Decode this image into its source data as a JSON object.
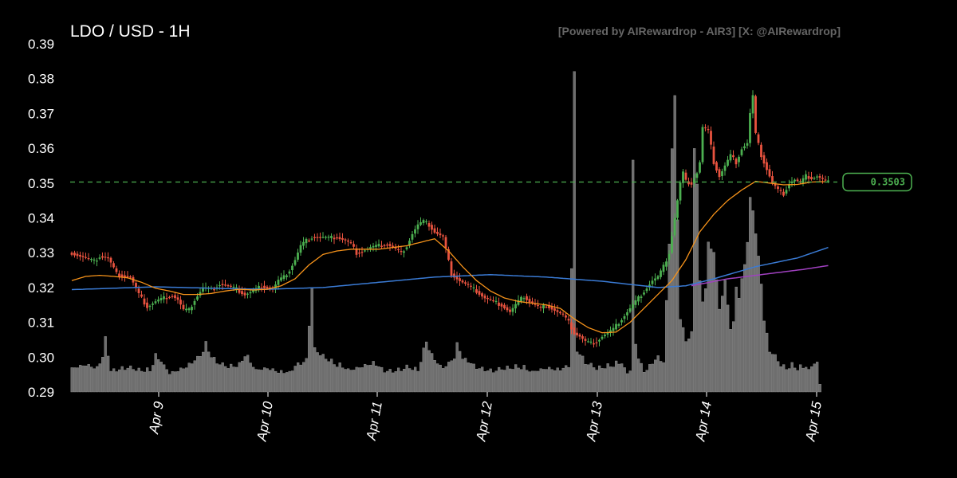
{
  "header": {
    "title": "LDO / USD - 1H",
    "watermark": "[Powered by AIRewardrop - AIR3] [X: @AIRewardrop]"
  },
  "colors": {
    "background": "#000000",
    "up": "#4caf50",
    "down": "#e8533f",
    "volume": "#6e6e6e",
    "ma_short": "#f7931a",
    "ma_mid": "#3a7bd5",
    "ma_long": "#a040c0",
    "price_line": "#4caf50"
  },
  "chart_data": {
    "type": "candlestick",
    "interval": "1H",
    "ylim": [
      0.29,
      0.39
    ],
    "yticks": [
      "0.39",
      "0.38",
      "0.37",
      "0.36",
      "0.35",
      "0.34",
      "0.33",
      "0.32",
      "0.31",
      "0.30",
      "0.29"
    ],
    "xticks": [
      "Apr 9",
      "Apr 10",
      "Apr 11",
      "Apr 12",
      "Apr 13",
      "Apr 14",
      "Apr 15"
    ],
    "current_price": "0.3503",
    "price_keypoints": [
      [
        0,
        0.33
      ],
      [
        8,
        0.3275
      ],
      [
        10,
        0.329
      ],
      [
        13,
        0.3285
      ],
      [
        16,
        0.324
      ],
      [
        18,
        0.3235
      ],
      [
        21,
        0.323
      ],
      [
        24,
        0.318
      ],
      [
        27,
        0.3145
      ],
      [
        30,
        0.316
      ],
      [
        33,
        0.317
      ],
      [
        36,
        0.3178
      ],
      [
        38,
        0.3165
      ],
      [
        40,
        0.3135
      ],
      [
        42,
        0.3135
      ],
      [
        44,
        0.3165
      ],
      [
        47,
        0.32
      ],
      [
        50,
        0.3195
      ],
      [
        53,
        0.321
      ],
      [
        56,
        0.3205
      ],
      [
        59,
        0.3195
      ],
      [
        62,
        0.318
      ],
      [
        65,
        0.319
      ],
      [
        68,
        0.3205
      ],
      [
        70,
        0.32
      ],
      [
        72,
        0.3195
      ],
      [
        74,
        0.322
      ],
      [
        76,
        0.323
      ],
      [
        78,
        0.325
      ],
      [
        80,
        0.328
      ],
      [
        82,
        0.332
      ],
      [
        84,
        0.3335
      ],
      [
        86,
        0.3345
      ],
      [
        89,
        0.3345
      ],
      [
        92,
        0.3342
      ],
      [
        95,
        0.3345
      ],
      [
        98,
        0.3335
      ],
      [
        100,
        0.3325
      ],
      [
        102,
        0.33
      ],
      [
        104,
        0.3305
      ],
      [
        107,
        0.3315
      ],
      [
        110,
        0.332
      ],
      [
        113,
        0.3325
      ],
      [
        116,
        0.331
      ],
      [
        118,
        0.33
      ],
      [
        120,
        0.332
      ],
      [
        122,
        0.3355
      ],
      [
        124,
        0.338
      ],
      [
        126,
        0.339
      ],
      [
        128,
        0.338
      ],
      [
        130,
        0.336
      ],
      [
        133,
        0.3345
      ],
      [
        136,
        0.324
      ],
      [
        139,
        0.322
      ],
      [
        142,
        0.3205
      ],
      [
        145,
        0.319
      ],
      [
        148,
        0.317
      ],
      [
        151,
        0.316
      ],
      [
        154,
        0.315
      ],
      [
        157,
        0.313
      ],
      [
        160,
        0.316
      ],
      [
        162,
        0.3175
      ],
      [
        164,
        0.316
      ],
      [
        166,
        0.315
      ],
      [
        168,
        0.314
      ],
      [
        170,
        0.315
      ],
      [
        172,
        0.314
      ],
      [
        174,
        0.313
      ],
      [
        176,
        0.312
      ],
      [
        178,
        0.31
      ],
      [
        180,
        0.307
      ],
      [
        182,
        0.306
      ],
      [
        184,
        0.3045
      ],
      [
        186,
        0.304
      ],
      [
        188,
        0.3045
      ],
      [
        190,
        0.306
      ],
      [
        192,
        0.307
      ],
      [
        194,
        0.308
      ],
      [
        196,
        0.31
      ],
      [
        198,
        0.312
      ],
      [
        200,
        0.314
      ],
      [
        202,
        0.316
      ],
      [
        204,
        0.318
      ],
      [
        206,
        0.32
      ],
      [
        208,
        0.322
      ],
      [
        210,
        0.323
      ],
      [
        212,
        0.326
      ],
      [
        214,
        0.33
      ],
      [
        216,
        0.34
      ],
      [
        218,
        0.35
      ],
      [
        219,
        0.353
      ],
      [
        220,
        0.3505
      ],
      [
        222,
        0.35
      ],
      [
        224,
        0.353
      ],
      [
        225,
        0.356
      ],
      [
        226,
        0.366
      ],
      [
        228,
        0.365
      ],
      [
        230,
        0.356
      ],
      [
        232,
        0.352
      ],
      [
        234,
        0.355
      ],
      [
        236,
        0.358
      ],
      [
        238,
        0.356
      ],
      [
        240,
        0.36
      ],
      [
        242,
        0.3615
      ],
      [
        243,
        0.37
      ],
      [
        244,
        0.375
      ],
      [
        245,
        0.364
      ],
      [
        247,
        0.358
      ],
      [
        249,
        0.354
      ],
      [
        251,
        0.35
      ],
      [
        253,
        0.348
      ],
      [
        255,
        0.347
      ],
      [
        257,
        0.35
      ],
      [
        259,
        0.351
      ],
      [
        261,
        0.35
      ],
      [
        263,
        0.352
      ],
      [
        265,
        0.3515
      ],
      [
        267,
        0.352
      ],
      [
        269,
        0.351
      ],
      [
        271,
        0.3503
      ]
    ],
    "volume_keypoints": [
      [
        0,
        0.297
      ],
      [
        5,
        0.298
      ],
      [
        9,
        0.297
      ],
      [
        11,
        0.3
      ],
      [
        12,
        0.3055
      ],
      [
        14,
        0.296
      ],
      [
        20,
        0.297
      ],
      [
        24,
        0.296
      ],
      [
        28,
        0.296
      ],
      [
        30,
        0.3
      ],
      [
        32,
        0.299
      ],
      [
        35,
        0.2955
      ],
      [
        40,
        0.297
      ],
      [
        44,
        0.299
      ],
      [
        47,
        0.3015
      ],
      [
        48,
        0.304
      ],
      [
        50,
        0.3
      ],
      [
        53,
        0.298
      ],
      [
        56,
        0.297
      ],
      [
        60,
        0.2975
      ],
      [
        62,
        0.3005
      ],
      [
        64,
        0.2985
      ],
      [
        66,
        0.2965
      ],
      [
        70,
        0.297
      ],
      [
        74,
        0.296
      ],
      [
        78,
        0.2955
      ],
      [
        80,
        0.2975
      ],
      [
        84,
        0.299
      ],
      [
        86,
        0.32
      ],
      [
        87,
        0.302
      ],
      [
        90,
        0.3
      ],
      [
        95,
        0.2975
      ],
      [
        100,
        0.2965
      ],
      [
        104,
        0.2975
      ],
      [
        108,
        0.2985
      ],
      [
        112,
        0.296
      ],
      [
        116,
        0.296
      ],
      [
        120,
        0.297
      ],
      [
        124,
        0.296
      ],
      [
        127,
        0.3045
      ],
      [
        129,
        0.3
      ],
      [
        133,
        0.297
      ],
      [
        137,
        0.3
      ],
      [
        138,
        0.304
      ],
      [
        140,
        0.3
      ],
      [
        145,
        0.297
      ],
      [
        150,
        0.296
      ],
      [
        155,
        0.2965
      ],
      [
        160,
        0.297
      ],
      [
        165,
        0.296
      ],
      [
        170,
        0.297
      ],
      [
        175,
        0.2965
      ],
      [
        178,
        0.2975
      ],
      [
        179,
        0.3255
      ],
      [
        180,
        0.3815
      ],
      [
        181,
        0.302
      ],
      [
        184,
        0.2985
      ],
      [
        188,
        0.2965
      ],
      [
        194,
        0.2975
      ],
      [
        197,
        0.2985
      ],
      [
        199,
        0.2955
      ],
      [
        200,
        0.2965
      ],
      [
        201,
        0.3565
      ],
      [
        202,
        0.304
      ],
      [
        203,
        0.3
      ],
      [
        205,
        0.296
      ],
      [
        210,
        0.3
      ],
      [
        212,
        0.2985
      ],
      [
        214,
        0.333
      ],
      [
        215,
        0.36
      ],
      [
        216,
        0.3745
      ],
      [
        217,
        0.34
      ],
      [
        218,
        0.311
      ],
      [
        220,
        0.3045
      ],
      [
        222,
        0.3065
      ],
      [
        223,
        0.36
      ],
      [
        224,
        0.35
      ],
      [
        225,
        0.321
      ],
      [
        226,
        0.316
      ],
      [
        227,
        0.32
      ],
      [
        228,
        0.332
      ],
      [
        230,
        0.3305
      ],
      [
        232,
        0.314
      ],
      [
        234,
        0.322
      ],
      [
        236,
        0.3085
      ],
      [
        237,
        0.31
      ],
      [
        238,
        0.3205
      ],
      [
        239,
        0.3175
      ],
      [
        241,
        0.327
      ],
      [
        242,
        0.333
      ],
      [
        243,
        0.3455
      ],
      [
        244,
        0.3425
      ],
      [
        245,
        0.3355
      ],
      [
        246,
        0.3285
      ],
      [
        247,
        0.3215
      ],
      [
        248,
        0.3105
      ],
      [
        250,
        0.302
      ],
      [
        252,
        0.3
      ],
      [
        254,
        0.2975
      ],
      [
        256,
        0.2965
      ],
      [
        258,
        0.2975
      ],
      [
        260,
        0.2965
      ],
      [
        262,
        0.297
      ],
      [
        263,
        0.2975
      ],
      [
        264,
        0.2965
      ],
      [
        266,
        0.2985
      ],
      [
        267,
        0.2985
      ],
      [
        268,
        0.2925
      ]
    ],
    "ma_short_keypoints": [
      [
        0,
        0.322
      ],
      [
        5,
        0.3232
      ],
      [
        10,
        0.3235
      ],
      [
        15,
        0.3232
      ],
      [
        20,
        0.3228
      ],
      [
        25,
        0.3215
      ],
      [
        30,
        0.3198
      ],
      [
        35,
        0.319
      ],
      [
        40,
        0.318
      ],
      [
        45,
        0.318
      ],
      [
        50,
        0.3183
      ],
      [
        55,
        0.319
      ],
      [
        60,
        0.3195
      ],
      [
        65,
        0.3193
      ],
      [
        70,
        0.3195
      ],
      [
        75,
        0.3205
      ],
      [
        80,
        0.3225
      ],
      [
        85,
        0.3265
      ],
      [
        90,
        0.3295
      ],
      [
        95,
        0.3305
      ],
      [
        100,
        0.331
      ],
      [
        105,
        0.331
      ],
      [
        110,
        0.331
      ],
      [
        115,
        0.3315
      ],
      [
        120,
        0.332
      ],
      [
        125,
        0.333
      ],
      [
        130,
        0.334
      ],
      [
        135,
        0.3305
      ],
      [
        140,
        0.326
      ],
      [
        145,
        0.322
      ],
      [
        150,
        0.319
      ],
      [
        155,
        0.317
      ],
      [
        160,
        0.316
      ],
      [
        165,
        0.3155
      ],
      [
        170,
        0.315
      ],
      [
        175,
        0.314
      ],
      [
        180,
        0.311
      ],
      [
        185,
        0.3085
      ],
      [
        190,
        0.307
      ],
      [
        195,
        0.3072
      ],
      [
        200,
        0.31
      ],
      [
        205,
        0.314
      ],
      [
        210,
        0.318
      ],
      [
        215,
        0.322
      ],
      [
        220,
        0.328
      ],
      [
        225,
        0.336
      ],
      [
        230,
        0.341
      ],
      [
        235,
        0.345
      ],
      [
        240,
        0.348
      ],
      [
        245,
        0.3505
      ],
      [
        250,
        0.35
      ],
      [
        255,
        0.3495
      ],
      [
        260,
        0.3496
      ],
      [
        265,
        0.3503
      ],
      [
        270,
        0.3504
      ]
    ],
    "ma_mid_keypoints": [
      [
        0,
        0.3194
      ],
      [
        30,
        0.3202
      ],
      [
        55,
        0.3197
      ],
      [
        70,
        0.3195
      ],
      [
        90,
        0.32
      ],
      [
        110,
        0.3215
      ],
      [
        130,
        0.323
      ],
      [
        150,
        0.3237
      ],
      [
        170,
        0.323
      ],
      [
        190,
        0.3218
      ],
      [
        210,
        0.32
      ],
      [
        220,
        0.3205
      ],
      [
        230,
        0.3225
      ],
      [
        245,
        0.326
      ],
      [
        260,
        0.3285
      ],
      [
        271,
        0.3315
      ]
    ],
    "ma_long_keypoints": [
      [
        222,
        0.3205
      ],
      [
        235,
        0.3225
      ],
      [
        250,
        0.324
      ],
      [
        262,
        0.3252
      ],
      [
        271,
        0.3263
      ]
    ]
  }
}
